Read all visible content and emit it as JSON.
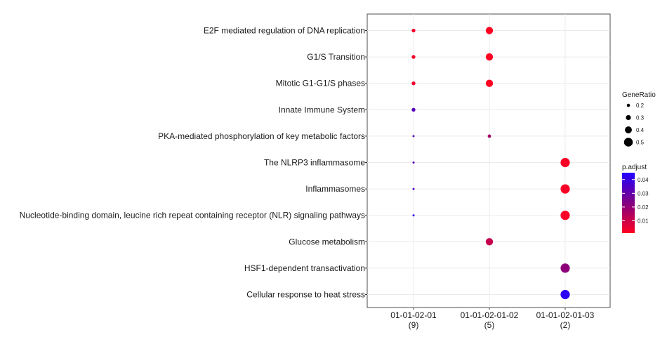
{
  "chart_data": {
    "type": "scatter",
    "categories_y": [
      "E2F mediated regulation of DNA replication",
      "G1/S Transition",
      "Mitotic G1-G1/S phases",
      "Innate Immune System",
      "PKA-mediated phosphorylation of key metabolic factors",
      "The NLRP3 inflammasome",
      "Inflammasomes",
      "Nucleotide-binding domain, leucine rich repeat containing receptor (NLR) signaling pathways",
      "Glucose metabolism",
      "HSF1-dependent transactivation",
      "Cellular response to heat stress"
    ],
    "categories_x": [
      {
        "name": "01-01-02-01",
        "count": "(9)"
      },
      {
        "name": "01-01-02-01-02",
        "count": "(5)"
      },
      {
        "name": "01-01-02-01-03",
        "count": "(2)"
      }
    ],
    "points": [
      {
        "x": 0,
        "y": 0,
        "gene_ratio": 0.22,
        "p_adjust": 0.003
      },
      {
        "x": 0,
        "y": 1,
        "gene_ratio": 0.22,
        "p_adjust": 0.003
      },
      {
        "x": 0,
        "y": 2,
        "gene_ratio": 0.22,
        "p_adjust": 0.004
      },
      {
        "x": 0,
        "y": 3,
        "gene_ratio": 0.22,
        "p_adjust": 0.033
      },
      {
        "x": 0,
        "y": 4,
        "gene_ratio": 0.11,
        "p_adjust": 0.033
      },
      {
        "x": 0,
        "y": 5,
        "gene_ratio": 0.11,
        "p_adjust": 0.034
      },
      {
        "x": 0,
        "y": 6,
        "gene_ratio": 0.11,
        "p_adjust": 0.034
      },
      {
        "x": 0,
        "y": 7,
        "gene_ratio": 0.11,
        "p_adjust": 0.043
      },
      {
        "x": 1,
        "y": 0,
        "gene_ratio": 0.4,
        "p_adjust": 0.001
      },
      {
        "x": 1,
        "y": 1,
        "gene_ratio": 0.4,
        "p_adjust": 0.001
      },
      {
        "x": 1,
        "y": 2,
        "gene_ratio": 0.4,
        "p_adjust": 0.001
      },
      {
        "x": 1,
        "y": 4,
        "gene_ratio": 0.2,
        "p_adjust": 0.017
      },
      {
        "x": 1,
        "y": 8,
        "gene_ratio": 0.4,
        "p_adjust": 0.011
      },
      {
        "x": 2,
        "y": 5,
        "gene_ratio": 0.5,
        "p_adjust": 0.002
      },
      {
        "x": 2,
        "y": 6,
        "gene_ratio": 0.5,
        "p_adjust": 0.002
      },
      {
        "x": 2,
        "y": 7,
        "gene_ratio": 0.5,
        "p_adjust": 0.002
      },
      {
        "x": 2,
        "y": 9,
        "gene_ratio": 0.5,
        "p_adjust": 0.021
      },
      {
        "x": 2,
        "y": 10,
        "gene_ratio": 0.5,
        "p_adjust": 0.043
      }
    ],
    "size_legend": {
      "title": "GeneRatio",
      "values": [
        0.2,
        0.3,
        0.4,
        0.5
      ],
      "labels": [
        "0.2",
        "0.3",
        "0.4",
        "0.5"
      ]
    },
    "color_legend": {
      "title": "p.adjust",
      "range": [
        0.001,
        0.045
      ],
      "ticks": [
        0.01,
        0.02,
        0.03,
        0.04
      ],
      "labels": [
        "0.01",
        "0.02",
        "0.03",
        "0.04"
      ],
      "low_color": "#ff0022",
      "high_color": "#2200ff"
    },
    "grid": true,
    "legend_position": "right"
  }
}
